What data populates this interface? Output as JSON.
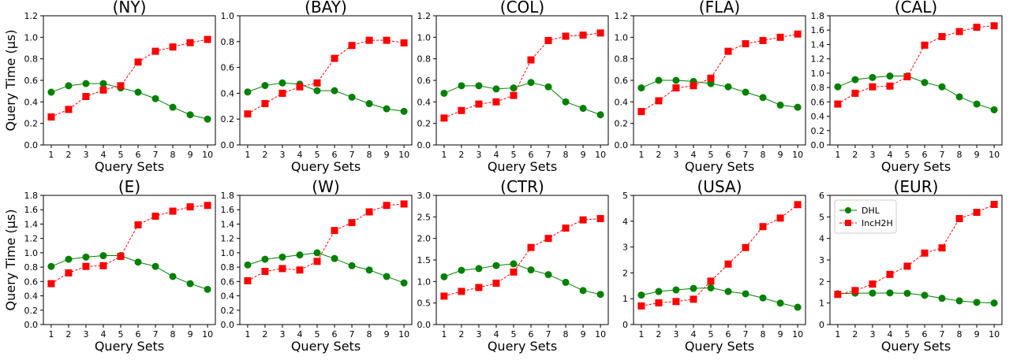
{
  "chart_data": [
    {
      "type": "line",
      "title": "(NY)",
      "xlabel": "Query Sets",
      "ylabel": "Query Time (μs)",
      "ylim": [
        0,
        1.2
      ],
      "yticks": [
        0.0,
        0.2,
        0.4,
        0.6,
        0.8,
        1.0,
        1.2
      ],
      "x": [
        1,
        2,
        3,
        4,
        5,
        6,
        7,
        8,
        9,
        10
      ],
      "series": [
        {
          "name": "DHL",
          "color": "#008000",
          "marker": "circle",
          "values": [
            0.49,
            0.55,
            0.57,
            0.57,
            0.53,
            0.49,
            0.43,
            0.35,
            0.28,
            0.24
          ]
        },
        {
          "name": "IncH2H",
          "color": "#ff0000",
          "marker": "square",
          "values": [
            0.26,
            0.33,
            0.45,
            0.51,
            0.55,
            0.77,
            0.87,
            0.91,
            0.95,
            0.98
          ]
        }
      ],
      "grid": false
    },
    {
      "type": "line",
      "title": "(BAY)",
      "xlabel": "Query Sets",
      "ylabel": "",
      "ylim": [
        0,
        1.0
      ],
      "yticks": [
        0.0,
        0.2,
        0.4,
        0.6,
        0.8,
        1.0
      ],
      "x": [
        1,
        2,
        3,
        4,
        5,
        6,
        7,
        8,
        9,
        10
      ],
      "series": [
        {
          "name": "DHL",
          "color": "#008000",
          "marker": "circle",
          "values": [
            0.41,
            0.46,
            0.48,
            0.47,
            0.42,
            0.42,
            0.37,
            0.32,
            0.28,
            0.26
          ]
        },
        {
          "name": "IncH2H",
          "color": "#ff0000",
          "marker": "square",
          "values": [
            0.24,
            0.32,
            0.4,
            0.45,
            0.48,
            0.67,
            0.77,
            0.81,
            0.81,
            0.79
          ]
        }
      ],
      "grid": false
    },
    {
      "type": "line",
      "title": "(COL)",
      "xlabel": "Query Sets",
      "ylabel": "",
      "ylim": [
        0,
        1.2
      ],
      "yticks": [
        0.0,
        0.2,
        0.4,
        0.6,
        0.8,
        1.0,
        1.2
      ],
      "x": [
        1,
        2,
        3,
        4,
        5,
        6,
        7,
        8,
        9,
        10
      ],
      "series": [
        {
          "name": "DHL",
          "color": "#008000",
          "marker": "circle",
          "values": [
            0.48,
            0.55,
            0.55,
            0.52,
            0.53,
            0.58,
            0.54,
            0.4,
            0.34,
            0.28
          ]
        },
        {
          "name": "IncH2H",
          "color": "#ff0000",
          "marker": "square",
          "values": [
            0.25,
            0.32,
            0.38,
            0.4,
            0.46,
            0.79,
            0.97,
            1.01,
            1.02,
            1.04
          ]
        }
      ],
      "grid": false
    },
    {
      "type": "line",
      "title": "(FLA)",
      "xlabel": "Query Sets",
      "ylabel": "",
      "ylim": [
        0,
        1.2
      ],
      "yticks": [
        0.0,
        0.2,
        0.4,
        0.6,
        0.8,
        1.0,
        1.2
      ],
      "x": [
        1,
        2,
        3,
        4,
        5,
        6,
        7,
        8,
        9,
        10
      ],
      "series": [
        {
          "name": "DHL",
          "color": "#008000",
          "marker": "circle",
          "values": [
            0.53,
            0.6,
            0.6,
            0.59,
            0.57,
            0.54,
            0.49,
            0.44,
            0.37,
            0.35
          ]
        },
        {
          "name": "IncH2H",
          "color": "#ff0000",
          "marker": "square",
          "values": [
            0.31,
            0.41,
            0.53,
            0.55,
            0.62,
            0.87,
            0.94,
            0.97,
            1.0,
            1.03
          ]
        }
      ],
      "grid": false
    },
    {
      "type": "line",
      "title": "(CAL)",
      "xlabel": "Query Sets",
      "ylabel": "",
      "ylim": [
        0,
        1.8
      ],
      "yticks": [
        0.0,
        0.2,
        0.4,
        0.6,
        0.8,
        1.0,
        1.2,
        1.4,
        1.6,
        1.8
      ],
      "x": [
        1,
        2,
        3,
        4,
        5,
        6,
        7,
        8,
        9,
        10
      ],
      "series": [
        {
          "name": "DHL",
          "color": "#008000",
          "marker": "circle",
          "values": [
            0.81,
            0.91,
            0.94,
            0.96,
            0.96,
            0.87,
            0.81,
            0.67,
            0.57,
            0.49
          ]
        },
        {
          "name": "IncH2H",
          "color": "#ff0000",
          "marker": "square",
          "values": [
            0.57,
            0.72,
            0.81,
            0.82,
            0.95,
            1.39,
            1.51,
            1.58,
            1.64,
            1.66
          ]
        }
      ],
      "grid": false
    },
    {
      "type": "line",
      "title": "(E)",
      "xlabel": "Query Sets",
      "ylabel": "Query Time (μs)",
      "ylim": [
        0,
        1.8
      ],
      "yticks": [
        0.0,
        0.2,
        0.4,
        0.6,
        0.8,
        1.0,
        1.2,
        1.4,
        1.6,
        1.8
      ],
      "x": [
        1,
        2,
        3,
        4,
        5,
        6,
        7,
        8,
        9,
        10
      ],
      "series": [
        {
          "name": "DHL",
          "color": "#008000",
          "marker": "circle",
          "values": [
            0.81,
            0.91,
            0.94,
            0.96,
            0.96,
            0.87,
            0.81,
            0.67,
            0.57,
            0.49
          ]
        },
        {
          "name": "IncH2H",
          "color": "#ff0000",
          "marker": "square",
          "values": [
            0.57,
            0.72,
            0.81,
            0.82,
            0.95,
            1.39,
            1.51,
            1.58,
            1.64,
            1.66
          ]
        }
      ],
      "grid": false
    },
    {
      "type": "line",
      "title": "(W)",
      "xlabel": "Query Sets",
      "ylabel": "",
      "ylim": [
        0,
        1.8
      ],
      "yticks": [
        0.0,
        0.2,
        0.4,
        0.6,
        0.8,
        1.0,
        1.2,
        1.4,
        1.6,
        1.8
      ],
      "x": [
        1,
        2,
        3,
        4,
        5,
        6,
        7,
        8,
        9,
        10
      ],
      "series": [
        {
          "name": "DHL",
          "color": "#008000",
          "marker": "circle",
          "values": [
            0.83,
            0.91,
            0.94,
            0.97,
            1.0,
            0.92,
            0.82,
            0.76,
            0.67,
            0.58
          ]
        },
        {
          "name": "IncH2H",
          "color": "#ff0000",
          "marker": "square",
          "values": [
            0.61,
            0.74,
            0.78,
            0.76,
            0.88,
            1.31,
            1.42,
            1.57,
            1.66,
            1.68
          ]
        }
      ],
      "grid": false
    },
    {
      "type": "line",
      "title": "(CTR)",
      "xlabel": "Query Sets",
      "ylabel": "",
      "ylim": [
        0,
        3.0
      ],
      "yticks": [
        0.0,
        0.5,
        1.0,
        1.5,
        2.0,
        2.5,
        3.0
      ],
      "x": [
        1,
        2,
        3,
        4,
        5,
        6,
        7,
        8,
        9,
        10
      ],
      "series": [
        {
          "name": "DHL",
          "color": "#008000",
          "marker": "circle",
          "values": [
            1.11,
            1.26,
            1.3,
            1.37,
            1.41,
            1.27,
            1.16,
            0.98,
            0.79,
            0.7
          ]
        },
        {
          "name": "IncH2H",
          "color": "#ff0000",
          "marker": "square",
          "values": [
            0.66,
            0.77,
            0.86,
            0.96,
            1.22,
            1.79,
            2.0,
            2.24,
            2.43,
            2.46
          ]
        }
      ],
      "grid": false
    },
    {
      "type": "line",
      "title": "(USA)",
      "xlabel": "Query Sets",
      "ylabel": "",
      "ylim": [
        0,
        5
      ],
      "yticks": [
        0,
        1,
        2,
        3,
        4,
        5
      ],
      "x": [
        1,
        2,
        3,
        4,
        5,
        6,
        7,
        8,
        9,
        10
      ],
      "series": [
        {
          "name": "DHL",
          "color": "#008000",
          "marker": "circle",
          "values": [
            1.14,
            1.28,
            1.34,
            1.4,
            1.42,
            1.28,
            1.19,
            1.03,
            0.83,
            0.67
          ]
        },
        {
          "name": "IncH2H",
          "color": "#ff0000",
          "marker": "square",
          "values": [
            0.72,
            0.84,
            0.89,
            0.98,
            1.68,
            2.34,
            2.98,
            3.79,
            4.12,
            4.64
          ]
        }
      ],
      "grid": false
    },
    {
      "type": "line",
      "title": "(EUR)",
      "xlabel": "Query Sets",
      "ylabel": "",
      "ylim": [
        0,
        6
      ],
      "yticks": [
        0,
        1,
        2,
        3,
        4,
        5,
        6
      ],
      "x": [
        1,
        2,
        3,
        4,
        5,
        6,
        7,
        8,
        9,
        10
      ],
      "series": [
        {
          "name": "DHL",
          "color": "#008000",
          "marker": "circle",
          "values": [
            1.43,
            1.46,
            1.46,
            1.47,
            1.45,
            1.36,
            1.22,
            1.1,
            1.03,
            1.0
          ]
        },
        {
          "name": "IncH2H",
          "color": "#ff0000",
          "marker": "square",
          "values": [
            1.4,
            1.58,
            1.88,
            2.33,
            2.71,
            3.32,
            3.56,
            4.92,
            5.21,
            5.58
          ]
        }
      ],
      "legend": {
        "placement": "upper-left",
        "entries": [
          "DHL",
          "IncH2H"
        ]
      },
      "grid": false
    }
  ]
}
